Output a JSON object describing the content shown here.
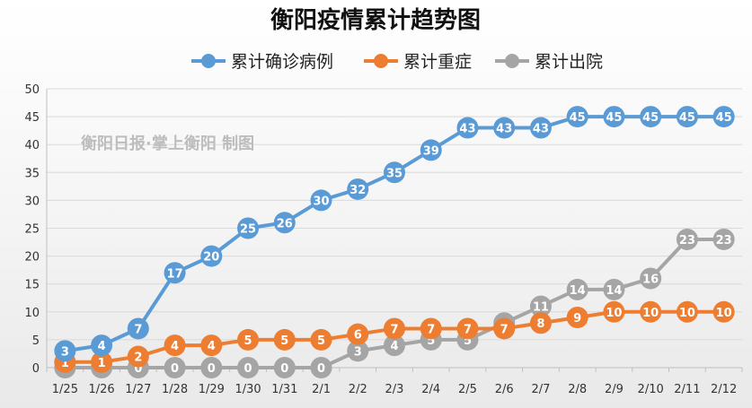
{
  "chart_data": {
    "type": "line",
    "title": "衡阳疫情累计趋势图",
    "watermark": "衡阳日报·掌上衡阳 制图",
    "categories": [
      "1/25",
      "1/26",
      "1/27",
      "1/28",
      "1/29",
      "1/30",
      "1/31",
      "2/1",
      "2/2",
      "2/3",
      "2/4",
      "2/5",
      "2/6",
      "2/7",
      "2/8",
      "2/9",
      "2/10",
      "2/11",
      "2/12"
    ],
    "ylim": [
      0,
      50
    ],
    "yticks": [
      0,
      5,
      10,
      15,
      20,
      25,
      30,
      35,
      40,
      45,
      50
    ],
    "grid": true,
    "legend_position": "top",
    "series": [
      {
        "name": "累计确诊病例",
        "color": "#5b9bd5",
        "values": [
          3,
          4,
          7,
          17,
          20,
          25,
          26,
          30,
          32,
          35,
          39,
          43,
          43,
          43,
          45,
          45,
          45,
          45,
          45
        ]
      },
      {
        "name": "累计重症",
        "color": "#ed7d31",
        "values": [
          1,
          1,
          2,
          4,
          4,
          5,
          5,
          5,
          6,
          7,
          7,
          7,
          7,
          8,
          9,
          10,
          10,
          10,
          10
        ]
      },
      {
        "name": "累计出院",
        "color": "#a5a5a5",
        "values": [
          0,
          0,
          0,
          0,
          0,
          0,
          0,
          0,
          3,
          4,
          5,
          5,
          8,
          11,
          14,
          14,
          16,
          23,
          23
        ]
      }
    ]
  }
}
